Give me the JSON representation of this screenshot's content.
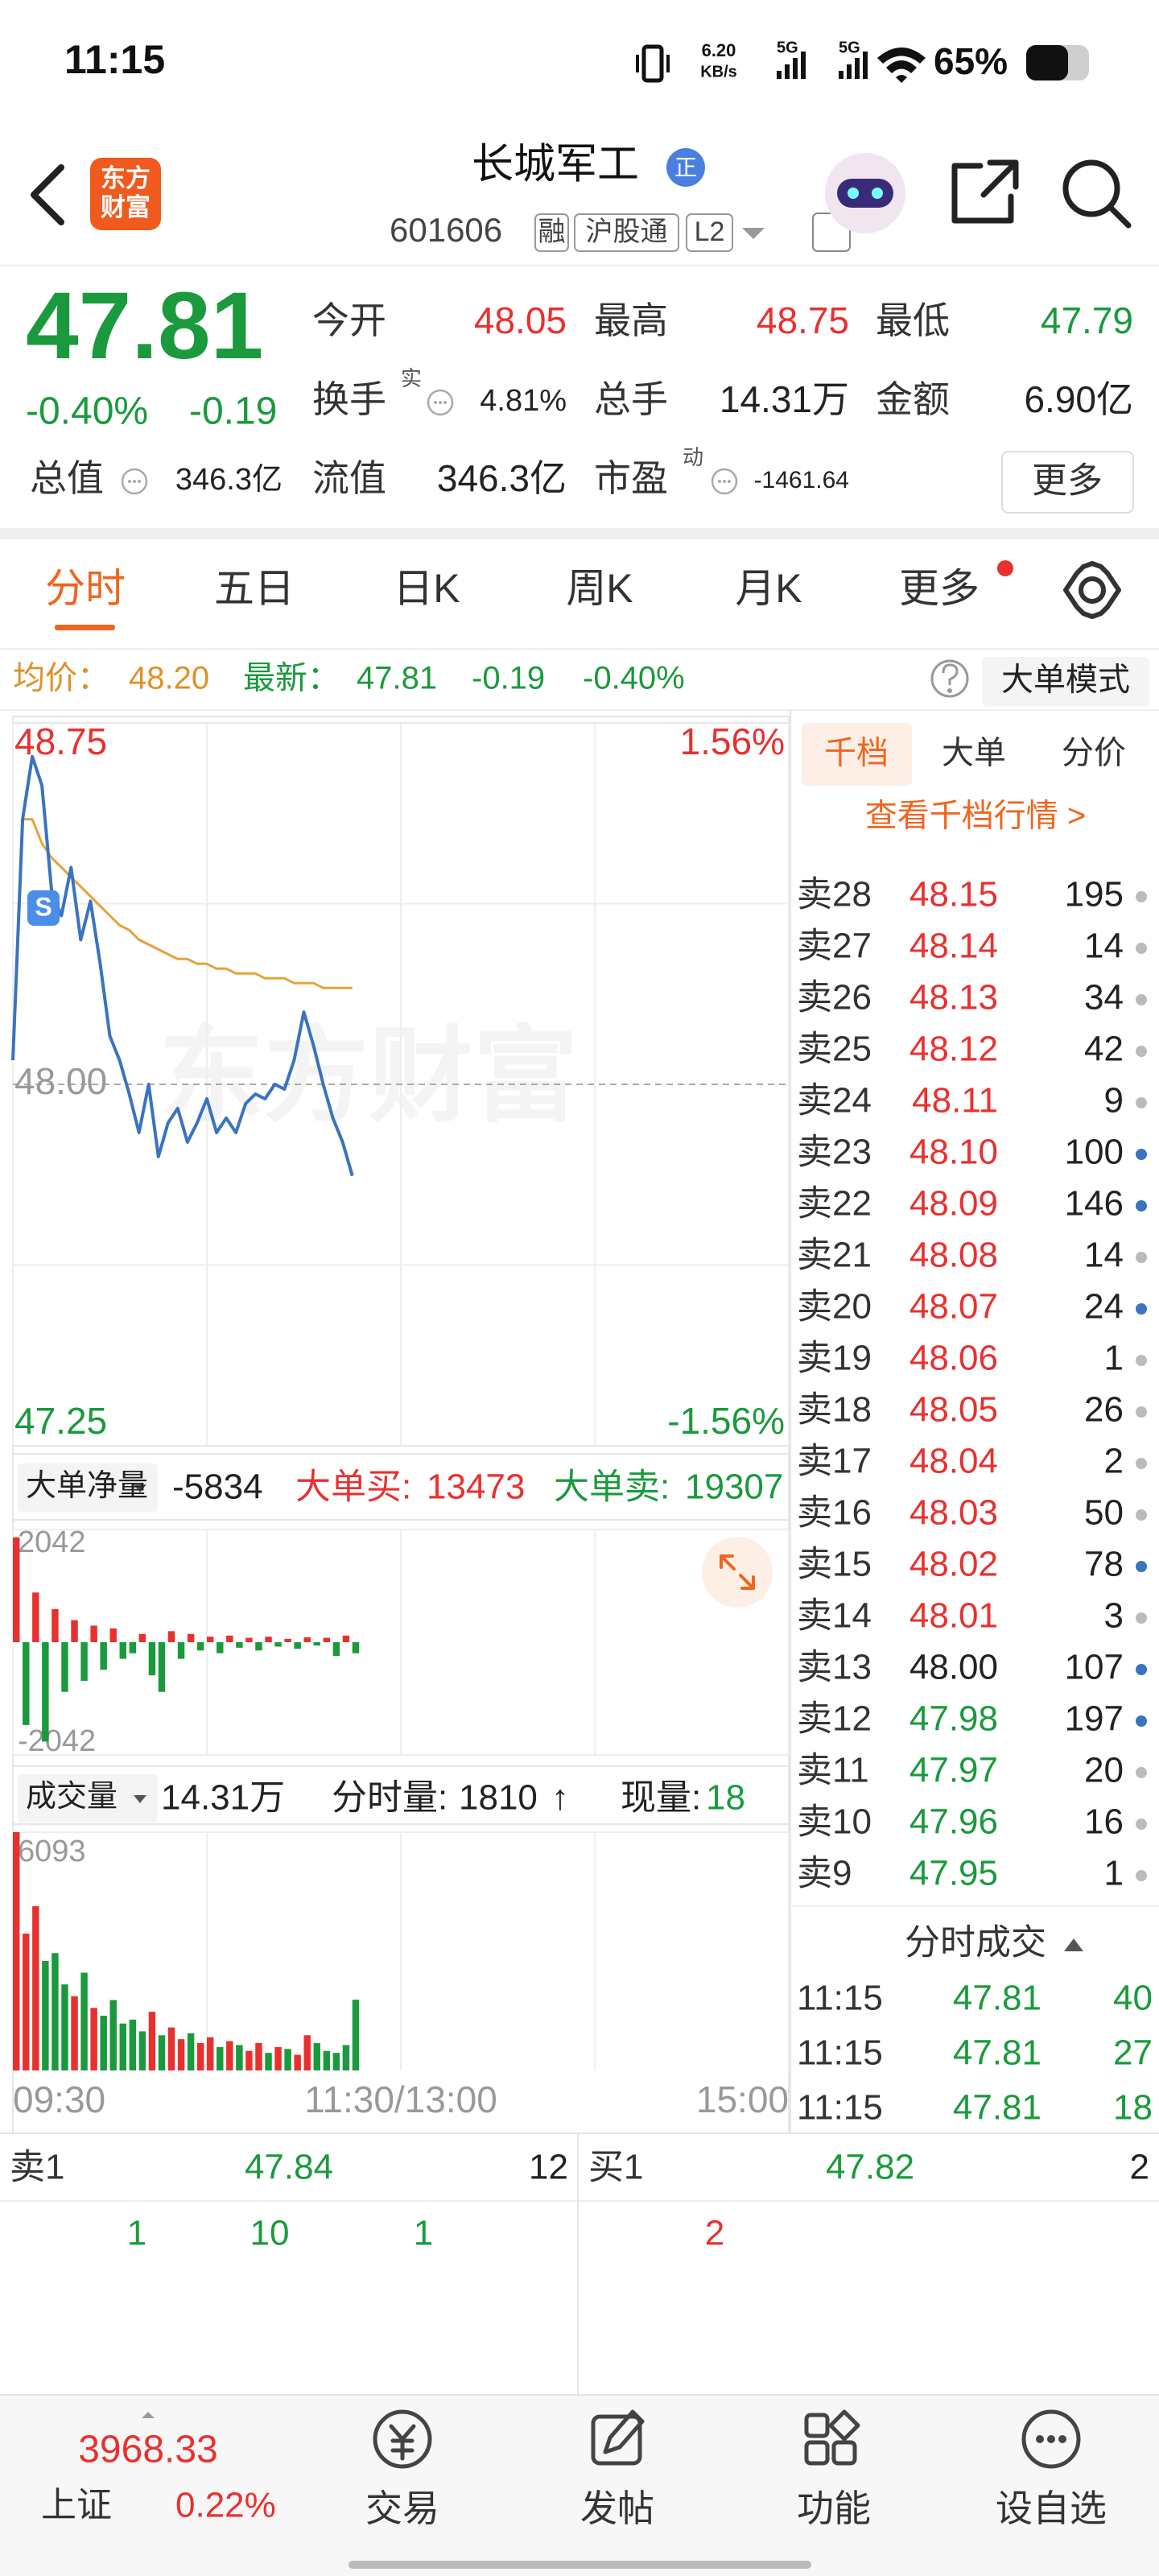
{
  "status_bar": {
    "time": "11:15",
    "speed": "6.20",
    "speed_unit": "KB/s",
    "net1": "5G",
    "net2": "5G",
    "battery": "65%"
  },
  "header": {
    "logo": "东方财富",
    "title": "长城军工",
    "badge": "正",
    "code": "601606",
    "tags": [
      "融",
      "沪股通",
      "L2"
    ]
  },
  "quote": {
    "price": "47.81",
    "change_pct": "-0.40%",
    "change": "-0.19",
    "fields": [
      {
        "label": "今开",
        "value": "48.05"
      },
      {
        "label": "最高",
        "value": "48.75"
      },
      {
        "label": "最低",
        "value": "47.79"
      },
      {
        "label": "换手",
        "sup": "实",
        "value": "4.81%"
      },
      {
        "label": "总手",
        "value": "14.31万"
      },
      {
        "label": "金额",
        "value": "6.90亿"
      },
      {
        "label": "总值",
        "value": "346.3亿"
      },
      {
        "label": "流值",
        "value": "346.3亿"
      },
      {
        "label": "市盈",
        "sup": "动",
        "value": "-1461.64"
      }
    ],
    "more": "更多"
  },
  "tabs": [
    "分时",
    "五日",
    "日K",
    "周K",
    "月K",
    "更多"
  ],
  "info_bar": {
    "avg_label": "均价：",
    "avg": "48.20",
    "latest_label": "最新：",
    "latest": "47.81",
    "change": "-0.19",
    "change_pct": "-0.40%",
    "mode": "大单模式"
  },
  "watermark": "东方财富",
  "marker": "S",
  "chart_data": [
    {
      "type": "line",
      "x": [
        0,
        3,
        6,
        9,
        12,
        15,
        18,
        21,
        24,
        27,
        30,
        33,
        36,
        39,
        42,
        45,
        48,
        51,
        54,
        57,
        60,
        63,
        66,
        69,
        72,
        75,
        78,
        81,
        84,
        87,
        90,
        93,
        96,
        99,
        102,
        105
      ],
      "series": [
        {
          "name": "价格",
          "color": "#3a73c0",
          "values": [
            48.05,
            48.55,
            48.68,
            48.62,
            48.4,
            48.35,
            48.45,
            48.3,
            48.38,
            48.25,
            48.1,
            48.05,
            47.98,
            47.9,
            48.0,
            47.85,
            47.92,
            47.95,
            47.88,
            47.92,
            47.97,
            47.9,
            47.93,
            47.9,
            47.96,
            47.98,
            47.97,
            48.0,
            47.99,
            48.05,
            48.15,
            48.08,
            48.0,
            47.93,
            47.88,
            47.81
          ]
        },
        {
          "name": "均价",
          "color": "#e5a33a",
          "values": [
            null,
            48.55,
            48.55,
            48.5,
            48.47,
            48.45,
            48.43,
            48.41,
            48.39,
            48.37,
            48.35,
            48.33,
            48.32,
            48.3,
            48.29,
            48.28,
            48.27,
            48.26,
            48.26,
            48.25,
            48.25,
            48.24,
            48.24,
            48.23,
            48.23,
            48.23,
            48.22,
            48.22,
            48.22,
            48.21,
            48.21,
            48.21,
            48.2,
            48.2,
            48.2,
            48.2
          ]
        }
      ],
      "xlim": [
        0,
        240
      ],
      "xticks": [
        {
          "value": 0,
          "label": "09:30"
        },
        {
          "value": 120,
          "label": "11:30/13:00"
        },
        {
          "value": 240,
          "label": "15:00"
        }
      ],
      "ylim": [
        47.25,
        48.75
      ],
      "yticks": [
        {
          "value": 48.75,
          "label": "48.75"
        },
        {
          "value": 48,
          "label": "48.00"
        },
        {
          "value": 47.25,
          "label": "47.25"
        }
      ],
      "y2lim": [
        -1.56,
        1.56
      ],
      "y2ticks": [
        {
          "value": 1.56,
          "label": "1.56%"
        },
        {
          "value": -1.56,
          "label": "-1.56%"
        }
      ]
    },
    {
      "type": "bar",
      "header": {
        "selector": "大单净量",
        "net": "-5834",
        "buy_label": "大单买:",
        "buy": "13473",
        "sell_label": "大单卖:",
        "sell": "19307"
      },
      "x": [
        0,
        3,
        6,
        9,
        12,
        15,
        18,
        21,
        24,
        27,
        30,
        33,
        36,
        39,
        42,
        45,
        48,
        51,
        54,
        57,
        60,
        63,
        66,
        69,
        72,
        75,
        78,
        81,
        84,
        87,
        90,
        93,
        96,
        99,
        102,
        105
      ],
      "values": [
        1900,
        -1500,
        900,
        -1800,
        600,
        -900,
        400,
        -700,
        300,
        -500,
        250,
        -300,
        -200,
        150,
        -600,
        -900,
        200,
        -300,
        150,
        -150,
        100,
        -200,
        120,
        -100,
        80,
        -150,
        100,
        -80,
        60,
        -120,
        90,
        -60,
        80,
        -250,
        120,
        -200
      ],
      "up_color": "#e8312f",
      "down_color": "#1a9a3c",
      "xlim": [
        0,
        240
      ],
      "ylim": [
        -2042,
        2042
      ],
      "yticks": [
        2042,
        -2042
      ]
    },
    {
      "type": "bar",
      "header": {
        "selector": "成交量",
        "total": "14.31万",
        "period_label": "分时量:",
        "period": "1810",
        "arrow": "↑",
        "now_label": "现量:",
        "now": "18"
      },
      "x": [
        0,
        3,
        6,
        9,
        12,
        15,
        18,
        21,
        24,
        27,
        30,
        33,
        36,
        39,
        42,
        45,
        48,
        51,
        54,
        57,
        60,
        63,
        66,
        69,
        72,
        75,
        78,
        81,
        84,
        87,
        90,
        93,
        96,
        99,
        102,
        105
      ],
      "values": [
        6093,
        3500,
        4200,
        2800,
        3000,
        2200,
        1900,
        2500,
        1600,
        1400,
        1800,
        1200,
        1300,
        1000,
        1500,
        900,
        1100,
        800,
        950,
        700,
        850,
        600,
        750,
        650,
        500,
        700,
        450,
        600,
        550,
        400,
        900,
        700,
        500,
        450,
        650,
        1810
      ],
      "up_color": "#e8312f",
      "down_color": "#1a9a3c",
      "xlim": [
        0,
        240
      ],
      "ylim": [
        0,
        6093
      ],
      "yticks": [
        6093
      ]
    }
  ],
  "order_book": {
    "tabs": [
      "千档",
      "大单",
      "分价"
    ],
    "link": "查看千档行情 >",
    "rows": [
      {
        "label": "卖28",
        "price": "48.15",
        "volume": "195",
        "dot": "#bbbbbb"
      },
      {
        "label": "卖27",
        "price": "48.14",
        "volume": "14",
        "dot": "#bbbbbb"
      },
      {
        "label": "卖26",
        "price": "48.13",
        "volume": "34",
        "dot": "#bbbbbb"
      },
      {
        "label": "卖25",
        "price": "48.12",
        "volume": "42",
        "dot": "#bbbbbb"
      },
      {
        "label": "卖24",
        "price": "48.11",
        "volume": "9",
        "dot": "#bbbbbb"
      },
      {
        "label": "卖23",
        "price": "48.10",
        "volume": "100",
        "dot": "#3a73c0"
      },
      {
        "label": "卖22",
        "price": "48.09",
        "volume": "146",
        "dot": "#3a73c0"
      },
      {
        "label": "卖21",
        "price": "48.08",
        "volume": "14",
        "dot": "#bbbbbb"
      },
      {
        "label": "卖20",
        "price": "48.07",
        "volume": "24",
        "dot": "#3a73c0"
      },
      {
        "label": "卖19",
        "price": "48.06",
        "volume": "1",
        "dot": "#bbbbbb"
      },
      {
        "label": "卖18",
        "price": "48.05",
        "volume": "26",
        "dot": "#bbbbbb"
      },
      {
        "label": "卖17",
        "price": "48.04",
        "volume": "2",
        "dot": "#bbbbbb"
      },
      {
        "label": "卖16",
        "price": "48.03",
        "volume": "50",
        "dot": "#bbbbbb"
      },
      {
        "label": "卖15",
        "price": "48.02",
        "volume": "78",
        "dot": "#3a73c0"
      },
      {
        "label": "卖14",
        "price": "48.01",
        "volume": "3",
        "dot": "#bbbbbb"
      },
      {
        "label": "卖13",
        "price": "48.00",
        "volume": "107",
        "dot": "#3a73c0"
      },
      {
        "label": "卖12",
        "price": "47.98",
        "volume": "197",
        "dot": "#3a73c0"
      },
      {
        "label": "卖11",
        "price": "47.97",
        "volume": "20",
        "dot": "#bbbbbb"
      },
      {
        "label": "卖10",
        "price": "47.96",
        "volume": "16",
        "dot": "#bbbbbb"
      },
      {
        "label": "卖9",
        "price": "47.95",
        "volume": "1",
        "dot": "#bbbbbb"
      }
    ],
    "trades_title": "分时成交",
    "trades": [
      {
        "time": "11:15",
        "price": "47.81",
        "volume": "40"
      },
      {
        "time": "11:15",
        "price": "47.81",
        "volume": "27"
      },
      {
        "time": "11:15",
        "price": "47.81",
        "volume": "18"
      }
    ]
  },
  "level1": {
    "sell": {
      "label": "卖1",
      "price": "47.84",
      "volume": "12",
      "queue": [
        "1",
        "10",
        "1"
      ]
    },
    "buy": {
      "label": "买1",
      "price": "47.82",
      "volume": "2",
      "queue": [
        "2"
      ]
    }
  },
  "nav": {
    "index": {
      "value": "3968.33",
      "name": "上证",
      "change": "0.22%"
    },
    "items": [
      "交易",
      "发帖",
      "功能",
      "设自选"
    ]
  }
}
